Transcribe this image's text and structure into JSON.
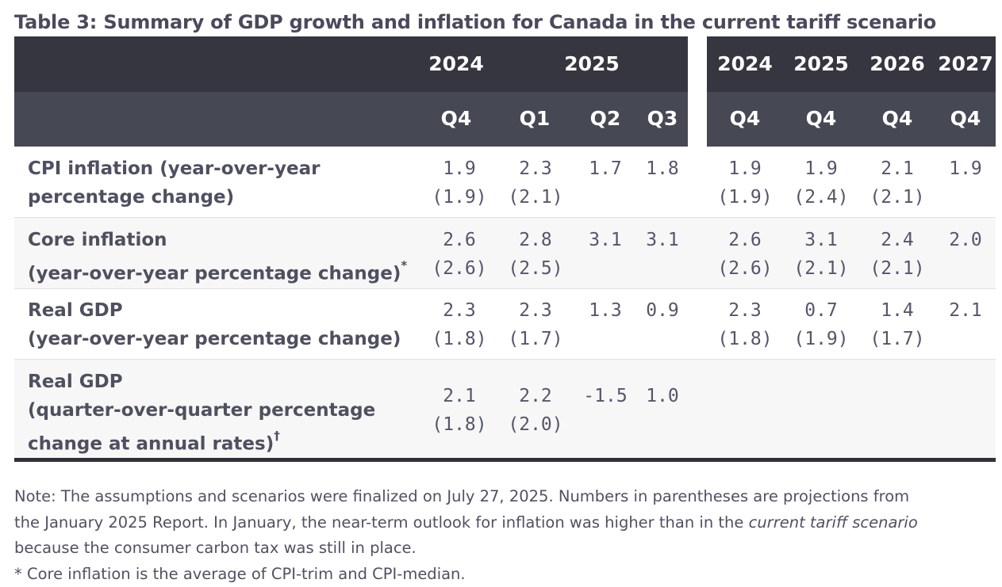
{
  "title": "Table 3: Summary of GDP growth and inflation for Canada in the current tariff scenario",
  "header": {
    "years_left": [
      "2024",
      "2025"
    ],
    "quarters_left": [
      "Q4",
      "Q1",
      "Q2",
      "Q3"
    ],
    "years_right": [
      "2024",
      "2025",
      "2026",
      "2027"
    ],
    "quarters_right": [
      "Q4",
      "Q4",
      "Q4",
      "Q4"
    ]
  },
  "rows": [
    {
      "label_lines": [
        "CPI inflation (year-over-year",
        "percentage change)"
      ],
      "marker": "",
      "q": [
        [
          "1.9",
          "(1.9)"
        ],
        [
          "2.3",
          "(2.1)"
        ],
        [
          "1.7",
          ""
        ],
        [
          "1.8",
          ""
        ]
      ],
      "a": [
        [
          "1.9",
          "(1.9)"
        ],
        [
          "1.9",
          "(2.4)"
        ],
        [
          "2.1",
          "(2.1)"
        ],
        [
          "1.9",
          ""
        ]
      ]
    },
    {
      "label_lines": [
        "Core inflation",
        "(year-over-year percentage change)"
      ],
      "marker": "*",
      "q": [
        [
          "2.6",
          "(2.6)"
        ],
        [
          "2.8",
          "(2.5)"
        ],
        [
          "3.1",
          ""
        ],
        [
          "3.1",
          ""
        ]
      ],
      "a": [
        [
          "2.6",
          "(2.6)"
        ],
        [
          "3.1",
          "(2.1)"
        ],
        [
          "2.4",
          "(2.1)"
        ],
        [
          "2.0",
          ""
        ]
      ]
    },
    {
      "label_lines": [
        "Real GDP",
        "(year-over-year percentage change)"
      ],
      "marker": "",
      "q": [
        [
          "2.3",
          "(1.8)"
        ],
        [
          "2.3",
          "(1.7)"
        ],
        [
          "1.3",
          ""
        ],
        [
          "0.9",
          ""
        ]
      ],
      "a": [
        [
          "2.3",
          "(1.8)"
        ],
        [
          "0.7",
          "(1.9)"
        ],
        [
          "1.4",
          "(1.7)"
        ],
        [
          "2.1",
          ""
        ]
      ]
    },
    {
      "label_lines": [
        "Real GDP",
        "(quarter-over-quarter percentage",
        "change at annual rates)"
      ],
      "marker": "†",
      "q": [
        [
          "2.1",
          "(1.8)"
        ],
        [
          "2.2",
          "(2.0)"
        ],
        [
          "-1.5",
          ""
        ],
        [
          "1.0",
          ""
        ]
      ],
      "a": []
    }
  ],
  "note": {
    "line1": "Note: The assumptions and scenarios were finalized on July 27, 2025. Numbers in parentheses are projections from",
    "line2_pre": "the January 2025 Report. In January, the near-term outlook for inflation was higher than in the ",
    "line2_em": "current tariff scenario",
    "line3": "because the consumer carbon tax was still in place.",
    "line4": "* Core inflation is the average of CPI-trim and CPI-median."
  }
}
